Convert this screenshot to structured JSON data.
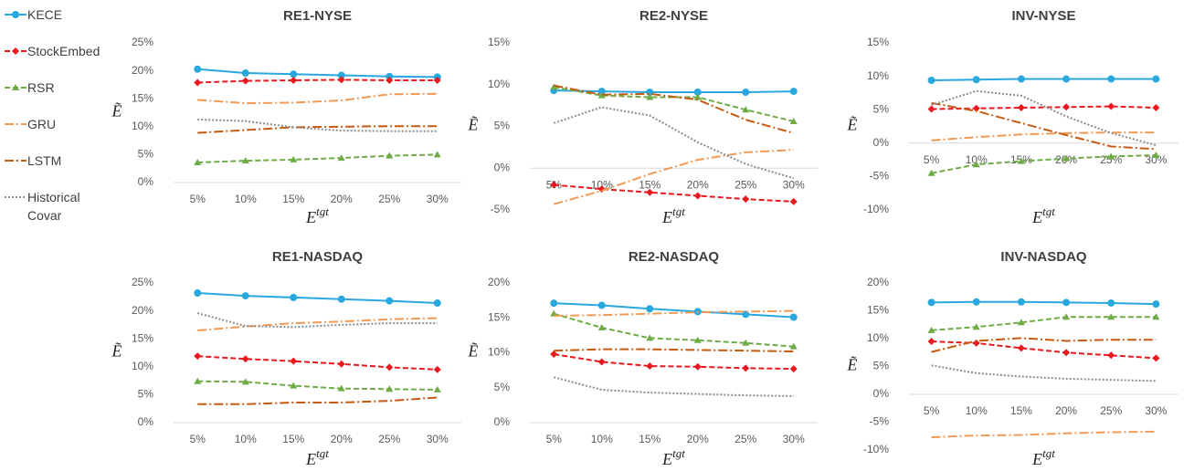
{
  "chart_data": [
    {
      "type": "line",
      "title": "RE1-NYSE",
      "y_label": "Ẽ",
      "x_label": {
        "text": "E",
        "superscript": "tgt"
      },
      "categories": [
        "5%",
        "10%",
        "15%",
        "20%",
        "25%",
        "30%"
      ],
      "ylim": [
        0,
        25
      ],
      "yticks": [
        {
          "value": 0,
          "label": "0%"
        },
        {
          "value": 5,
          "label": "5%"
        },
        {
          "value": 10,
          "label": "10%"
        },
        {
          "value": 15,
          "label": "15%"
        },
        {
          "value": 20,
          "label": "20%"
        },
        {
          "value": 25,
          "label": "25%"
        }
      ],
      "grid": false,
      "series": [
        {
          "name": "KECE",
          "color": "#29a8e0",
          "dash": "solid",
          "marker": "circle",
          "values": [
            20.3,
            19.6,
            19.4,
            19.2,
            19.0,
            18.9
          ]
        },
        {
          "name": "StockEmbed",
          "color": "#e8191f",
          "dash": "dashed",
          "marker": "diamond",
          "values": [
            17.9,
            18.2,
            18.3,
            18.4,
            18.3,
            18.3
          ]
        },
        {
          "name": "RSR",
          "color": "#6fac46",
          "dash": "dashed",
          "marker": "triangle",
          "values": [
            3.6,
            3.9,
            4.1,
            4.4,
            4.8,
            5.0
          ]
        },
        {
          "name": "GRU",
          "color": "#f19a55",
          "dash": "dashdot",
          "values": [
            14.8,
            14.2,
            14.3,
            14.7,
            15.8,
            15.9
          ]
        },
        {
          "name": "LSTM",
          "color": "#c55a11",
          "dash": "dashdot",
          "values": [
            8.9,
            9.4,
            9.9,
            10.0,
            10.1,
            10.1
          ]
        },
        {
          "name": "Historical Covar",
          "color": "#8c8c8c",
          "dash": "dotted",
          "values": [
            11.3,
            11.0,
            9.9,
            9.3,
            9.2,
            9.2
          ]
        }
      ]
    },
    {
      "type": "line",
      "title": "RE2-NYSE",
      "y_label": "Ẽ",
      "x_label": {
        "text": "E",
        "superscript": "tgt"
      },
      "categories": [
        "5%",
        "10%",
        "15%",
        "20%",
        "25%",
        "30%"
      ],
      "ylim": [
        -5,
        15
      ],
      "yticks": [
        {
          "value": -5,
          "label": "-5%"
        },
        {
          "value": 0,
          "label": "0%"
        },
        {
          "value": 5,
          "label": "5%"
        },
        {
          "value": 10,
          "label": "10%"
        },
        {
          "value": 15,
          "label": "15%"
        }
      ],
      "grid": false,
      "series": [
        {
          "name": "KECE",
          "color": "#29a8e0",
          "dash": "solid",
          "marker": "circle",
          "values": [
            9.3,
            9.2,
            9.1,
            9.1,
            9.1,
            9.2
          ]
        },
        {
          "name": "StockEmbed",
          "color": "#e8191f",
          "dash": "dashed",
          "marker": "diamond",
          "values": [
            -2.0,
            -2.5,
            -2.9,
            -3.3,
            -3.7,
            -4.0
          ]
        },
        {
          "name": "RSR",
          "color": "#6fac46",
          "dash": "dashed",
          "marker": "triangle",
          "values": [
            9.7,
            8.7,
            8.5,
            8.5,
            7.0,
            5.6
          ]
        },
        {
          "name": "GRU",
          "color": "#f19a55",
          "dash": "dashdot",
          "values": [
            -4.3,
            -2.7,
            -0.7,
            1.0,
            1.9,
            2.2
          ]
        },
        {
          "name": "LSTM",
          "color": "#c55a11",
          "dash": "dashdot",
          "values": [
            9.9,
            8.8,
            8.9,
            8.2,
            5.8,
            4.2
          ]
        },
        {
          "name": "Historical Covar",
          "color": "#8c8c8c",
          "dash": "dotted",
          "values": [
            5.4,
            7.3,
            6.3,
            3.1,
            0.5,
            -1.2
          ]
        }
      ]
    },
    {
      "type": "line",
      "title": "INV-NYSE",
      "y_label": "Ẽ",
      "x_label": {
        "text": "E",
        "superscript": "tgt"
      },
      "categories": [
        "5%",
        "10%",
        "15%",
        "20%",
        "25%",
        "30%"
      ],
      "ylim": [
        -10,
        15
      ],
      "yticks": [
        {
          "value": -10,
          "label": "-10%"
        },
        {
          "value": -5,
          "label": "-5%"
        },
        {
          "value": 0,
          "label": "0%"
        },
        {
          "value": 5,
          "label": "5%"
        },
        {
          "value": 10,
          "label": "10%"
        },
        {
          "value": 15,
          "label": "15%"
        }
      ],
      "grid": false,
      "series": [
        {
          "name": "KECE",
          "color": "#29a8e0",
          "dash": "solid",
          "marker": "circle",
          "values": [
            9.4,
            9.5,
            9.6,
            9.6,
            9.6,
            9.6
          ]
        },
        {
          "name": "StockEmbed",
          "color": "#e8191f",
          "dash": "dashed",
          "marker": "diamond",
          "values": [
            5.1,
            5.2,
            5.3,
            5.4,
            5.5,
            5.3
          ]
        },
        {
          "name": "RSR",
          "color": "#6fac46",
          "dash": "dashed",
          "marker": "triangle",
          "values": [
            -4.5,
            -3.2,
            -2.7,
            -2.3,
            -2.0,
            -1.8
          ]
        },
        {
          "name": "GRU",
          "color": "#f19a55",
          "dash": "dashdot",
          "values": [
            0.4,
            0.9,
            1.3,
            1.5,
            1.6,
            1.6
          ]
        },
        {
          "name": "LSTM",
          "color": "#c55a11",
          "dash": "dashdot",
          "values": [
            6.0,
            4.8,
            3.0,
            1.2,
            -0.5,
            -0.9
          ]
        },
        {
          "name": "Historical Covar",
          "color": "#8c8c8c",
          "dash": "dotted",
          "values": [
            5.7,
            7.8,
            7.1,
            4.0,
            1.5,
            -0.3
          ]
        }
      ]
    },
    {
      "type": "line",
      "title": "RE1-NASDAQ",
      "y_label": "Ẽ",
      "x_label": {
        "text": "E",
        "superscript": "tgt"
      },
      "categories": [
        "5%",
        "10%",
        "15%",
        "20%",
        "25%",
        "30%"
      ],
      "ylim": [
        0,
        25
      ],
      "yticks": [
        {
          "value": 0,
          "label": "0%"
        },
        {
          "value": 5,
          "label": "5%"
        },
        {
          "value": 10,
          "label": "10%"
        },
        {
          "value": 15,
          "label": "15%"
        },
        {
          "value": 20,
          "label": "20%"
        },
        {
          "value": 25,
          "label": "25%"
        }
      ],
      "grid": false,
      "series": [
        {
          "name": "KECE",
          "color": "#29a8e0",
          "dash": "solid",
          "marker": "circle",
          "values": [
            23.2,
            22.7,
            22.4,
            22.1,
            21.8,
            21.4
          ]
        },
        {
          "name": "StockEmbed",
          "color": "#e8191f",
          "dash": "dashed",
          "marker": "diamond",
          "values": [
            11.9,
            11.4,
            11.0,
            10.5,
            9.9,
            9.5
          ]
        },
        {
          "name": "RSR",
          "color": "#6fac46",
          "dash": "dashed",
          "marker": "triangle",
          "values": [
            7.4,
            7.3,
            6.6,
            6.1,
            6.0,
            5.9
          ]
        },
        {
          "name": "GRU",
          "color": "#f19a55",
          "dash": "dashdot",
          "values": [
            16.5,
            17.2,
            17.8,
            18.1,
            18.5,
            18.7
          ]
        },
        {
          "name": "LSTM",
          "color": "#c55a11",
          "dash": "dashdot",
          "values": [
            3.3,
            3.3,
            3.6,
            3.6,
            3.9,
            4.5
          ]
        },
        {
          "name": "Historical Covar",
          "color": "#8c8c8c",
          "dash": "dotted",
          "values": [
            19.6,
            17.3,
            17.1,
            17.5,
            17.8,
            17.8
          ]
        }
      ]
    },
    {
      "type": "line",
      "title": "RE2-NASDAQ",
      "y_label": "Ẽ",
      "x_label": {
        "text": "E",
        "superscript": "tgt"
      },
      "categories": [
        "5%",
        "10%",
        "15%",
        "20%",
        "25%",
        "30%"
      ],
      "ylim": [
        0,
        20
      ],
      "yticks": [
        {
          "value": 0,
          "label": "0%"
        },
        {
          "value": 5,
          "label": "5%"
        },
        {
          "value": 10,
          "label": "10%"
        },
        {
          "value": 15,
          "label": "15%"
        },
        {
          "value": 20,
          "label": "20%"
        }
      ],
      "grid": false,
      "series": [
        {
          "name": "KECE",
          "color": "#29a8e0",
          "dash": "solid",
          "marker": "circle",
          "values": [
            17.1,
            16.8,
            16.3,
            15.9,
            15.5,
            15.1
          ]
        },
        {
          "name": "StockEmbed",
          "color": "#e8191f",
          "dash": "dashed",
          "marker": "diamond",
          "values": [
            9.8,
            8.7,
            8.1,
            8.0,
            7.8,
            7.7
          ]
        },
        {
          "name": "RSR",
          "color": "#6fac46",
          "dash": "dashed",
          "marker": "triangle",
          "values": [
            15.6,
            13.6,
            12.1,
            11.8,
            11.4,
            10.9
          ]
        },
        {
          "name": "GRU",
          "color": "#f19a55",
          "dash": "dashdot",
          "values": [
            15.3,
            15.4,
            15.6,
            15.8,
            15.9,
            16.0
          ]
        },
        {
          "name": "LSTM",
          "color": "#c55a11",
          "dash": "dashdot",
          "values": [
            10.3,
            10.5,
            10.5,
            10.4,
            10.3,
            10.2
          ]
        },
        {
          "name": "Historical Covar",
          "color": "#8c8c8c",
          "dash": "dotted",
          "values": [
            6.5,
            4.7,
            4.3,
            4.1,
            3.9,
            3.8
          ]
        }
      ]
    },
    {
      "type": "line",
      "title": "INV-NASDAQ",
      "y_label": "Ẽ",
      "x_label": {
        "text": "E",
        "superscript": "tgt"
      },
      "categories": [
        "5%",
        "10%",
        "15%",
        "20%",
        "25%",
        "30%"
      ],
      "ylim": [
        -10,
        20
      ],
      "yticks": [
        {
          "value": -10,
          "label": "-10%"
        },
        {
          "value": -5,
          "label": "-5%"
        },
        {
          "value": 0,
          "label": "0%"
        },
        {
          "value": 5,
          "label": "5%"
        },
        {
          "value": 10,
          "label": "10%"
        },
        {
          "value": 15,
          "label": "15%"
        },
        {
          "value": 20,
          "label": "20%"
        }
      ],
      "grid": false,
      "series": [
        {
          "name": "KECE",
          "color": "#29a8e0",
          "dash": "solid",
          "marker": "circle",
          "values": [
            16.5,
            16.6,
            16.6,
            16.5,
            16.4,
            16.2
          ]
        },
        {
          "name": "StockEmbed",
          "color": "#e8191f",
          "dash": "dashed",
          "marker": "diamond",
          "values": [
            9.5,
            9.2,
            8.3,
            7.5,
            7.0,
            6.5
          ]
        },
        {
          "name": "RSR",
          "color": "#6fac46",
          "dash": "dashed",
          "marker": "triangle",
          "values": [
            11.5,
            12.1,
            12.9,
            13.9,
            13.9,
            13.9
          ]
        },
        {
          "name": "GRU",
          "color": "#f19a55",
          "dash": "dashdot",
          "values": [
            -7.7,
            -7.4,
            -7.3,
            -7.0,
            -6.8,
            -6.7
          ]
        },
        {
          "name": "LSTM",
          "color": "#c55a11",
          "dash": "dashdot",
          "values": [
            7.6,
            9.6,
            10.1,
            9.6,
            9.8,
            9.8
          ]
        },
        {
          "name": "Historical Covar",
          "color": "#8c8c8c",
          "dash": "dotted",
          "values": [
            5.2,
            3.8,
            3.2,
            2.8,
            2.6,
            2.4
          ]
        }
      ]
    }
  ]
}
